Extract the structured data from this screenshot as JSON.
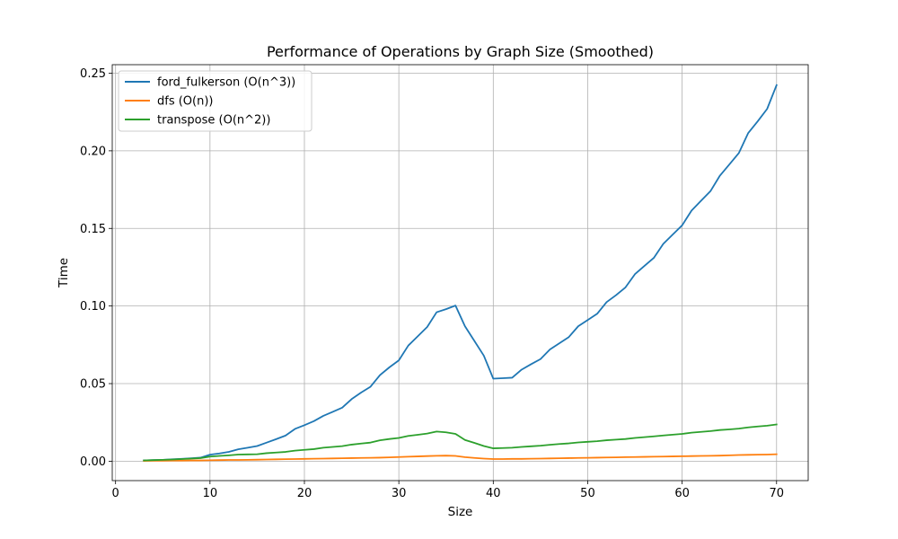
{
  "chart_data": {
    "type": "line",
    "title": "Performance of Operations by Graph Size (Smoothed)",
    "xlabel": "Size",
    "ylabel": "Time",
    "xlim": [
      -0.35,
      73.35
    ],
    "ylim": [
      -0.0125,
      0.2555
    ],
    "xticks": [
      0,
      10,
      20,
      30,
      40,
      50,
      60,
      70
    ],
    "yticks": [
      0.0,
      0.05,
      0.1,
      0.15,
      0.2,
      0.25
    ],
    "xtick_labels": [
      "0",
      "10",
      "20",
      "30",
      "40",
      "50",
      "60",
      "70"
    ],
    "ytick_labels": [
      "0.00",
      "0.05",
      "0.10",
      "0.15",
      "0.20",
      "0.25"
    ],
    "grid": true,
    "legend_position": "upper-left",
    "x": [
      3,
      4,
      5,
      6,
      7,
      8,
      9,
      10,
      11,
      12,
      13,
      14,
      15,
      16,
      17,
      18,
      19,
      20,
      21,
      22,
      23,
      24,
      25,
      26,
      27,
      28,
      29,
      30,
      31,
      32,
      33,
      34,
      35,
      36,
      37,
      38,
      39,
      40,
      41,
      42,
      43,
      44,
      45,
      46,
      47,
      48,
      49,
      50,
      51,
      52,
      53,
      54,
      55,
      56,
      57,
      58,
      59,
      60,
      61,
      62,
      63,
      64,
      65,
      66,
      67,
      68,
      69,
      70
    ],
    "series": [
      {
        "name": "ford_fulkerson (O(n^3))",
        "color": "#1f77b4",
        "values": [
          0.0005,
          0.0007,
          0.0009,
          0.0012,
          0.0015,
          0.0019,
          0.0023,
          0.0042,
          0.005,
          0.006,
          0.0077,
          0.0087,
          0.0098,
          0.012,
          0.0142,
          0.0165,
          0.0208,
          0.0232,
          0.0258,
          0.0292,
          0.0318,
          0.0345,
          0.04,
          0.0442,
          0.048,
          0.0555,
          0.0605,
          0.065,
          0.0745,
          0.0805,
          0.0865,
          0.096,
          0.098,
          0.1003,
          0.087,
          0.0775,
          0.068,
          0.0532,
          0.0535,
          0.0538,
          0.059,
          0.0625,
          0.0658,
          0.072,
          0.076,
          0.08,
          0.087,
          0.091,
          0.095,
          0.1025,
          0.107,
          0.112,
          0.1205,
          0.1258,
          0.131,
          0.14,
          0.146,
          0.152,
          0.1615,
          0.1678,
          0.174,
          0.184,
          0.1912,
          0.1985,
          0.2115,
          0.219,
          0.227,
          0.2423
        ]
      },
      {
        "name": "dfs (O(n))",
        "color": "#ff7f0e",
        "values": [
          0.0002,
          0.0003,
          0.0003,
          0.0004,
          0.0004,
          0.0005,
          0.0005,
          0.0006,
          0.0007,
          0.0008,
          0.0008,
          0.0009,
          0.001,
          0.0011,
          0.0012,
          0.0013,
          0.0014,
          0.0015,
          0.0016,
          0.0017,
          0.0018,
          0.0019,
          0.002,
          0.0021,
          0.0022,
          0.0023,
          0.0025,
          0.0027,
          0.0029,
          0.0031,
          0.0033,
          0.0035,
          0.0036,
          0.0034,
          0.0026,
          0.0021,
          0.0017,
          0.0014,
          0.0014,
          0.0015,
          0.0015,
          0.0016,
          0.0017,
          0.0018,
          0.0019,
          0.002,
          0.0021,
          0.0022,
          0.0023,
          0.0024,
          0.0025,
          0.0026,
          0.0027,
          0.0028,
          0.0029,
          0.003,
          0.0031,
          0.0032,
          0.0033,
          0.0034,
          0.0035,
          0.0036,
          0.0038,
          0.004,
          0.0041,
          0.0042,
          0.0043,
          0.0045
        ]
      },
      {
        "name": "transpose (O(n^2))",
        "color": "#2ca02c",
        "values": [
          0.0005,
          0.0007,
          0.0009,
          0.0011,
          0.0014,
          0.0017,
          0.002,
          0.003,
          0.0034,
          0.0038,
          0.0043,
          0.0044,
          0.0045,
          0.0052,
          0.0056,
          0.006,
          0.0068,
          0.0073,
          0.0078,
          0.0087,
          0.0092,
          0.0097,
          0.0107,
          0.0114,
          0.012,
          0.0135,
          0.0143,
          0.015,
          0.0163,
          0.017,
          0.0178,
          0.0191,
          0.0186,
          0.0176,
          0.0137,
          0.0118,
          0.0098,
          0.0083,
          0.0085,
          0.0087,
          0.0092,
          0.0096,
          0.01,
          0.0106,
          0.0111,
          0.0115,
          0.0121,
          0.0125,
          0.0129,
          0.0135,
          0.0139,
          0.0143,
          0.015,
          0.0155,
          0.016,
          0.0166,
          0.0171,
          0.0176,
          0.0184,
          0.0189,
          0.0194,
          0.0201,
          0.0205,
          0.021,
          0.0218,
          0.0224,
          0.0229,
          0.0237
        ]
      }
    ]
  }
}
